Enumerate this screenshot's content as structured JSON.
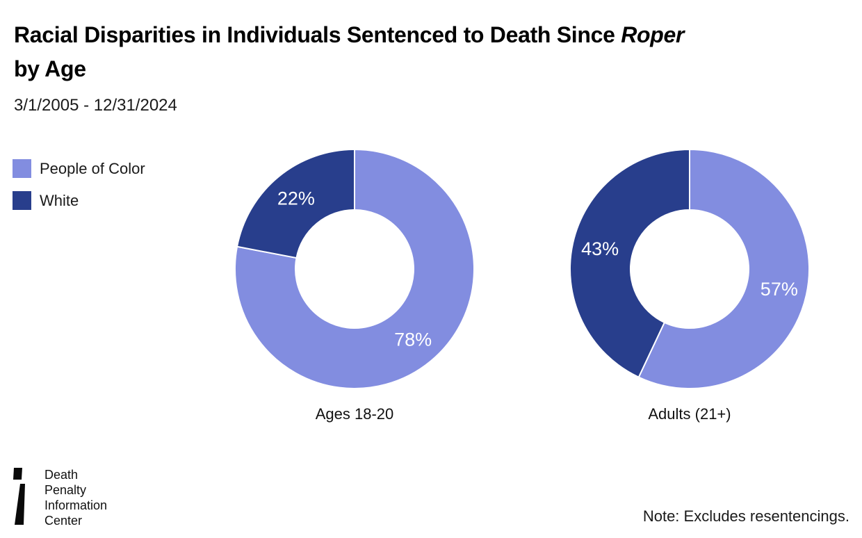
{
  "header": {
    "title_line1": "Racial Disparities in Individuals Sentenced to Death Since",
    "title_italic": "Roper",
    "title_line2": "by Age",
    "subtitle": "3/1/2005 - 12/31/2024"
  },
  "legend": {
    "items": [
      {
        "label": "People of Color",
        "color": "#828DE0"
      },
      {
        "label": "White",
        "color": "#283E8C"
      }
    ]
  },
  "chart_data": [
    {
      "type": "pie",
      "subtype": "donut",
      "title": "Ages 18-20",
      "labels": [
        "People of Color",
        "White"
      ],
      "values": [
        78,
        22
      ],
      "value_labels": [
        "78%",
        "22%"
      ],
      "colors": [
        "#828DE0",
        "#283E8C"
      ],
      "units": "%",
      "start_angle_deg": 0,
      "direction": "clockwise",
      "legend_position": "top-left"
    },
    {
      "type": "pie",
      "subtype": "donut",
      "title": "Adults (21+)",
      "labels": [
        "People of Color",
        "White"
      ],
      "values": [
        57,
        43
      ],
      "value_labels": [
        "57%",
        "43%"
      ],
      "colors": [
        "#828DE0",
        "#283E8C"
      ],
      "units": "%",
      "start_angle_deg": 0,
      "direction": "clockwise",
      "legend_position": "top-left"
    }
  ],
  "footer": {
    "logo_lines": [
      "Death",
      "Penalty",
      "Information",
      "Center"
    ],
    "note": "Note: Excludes resentencings."
  }
}
